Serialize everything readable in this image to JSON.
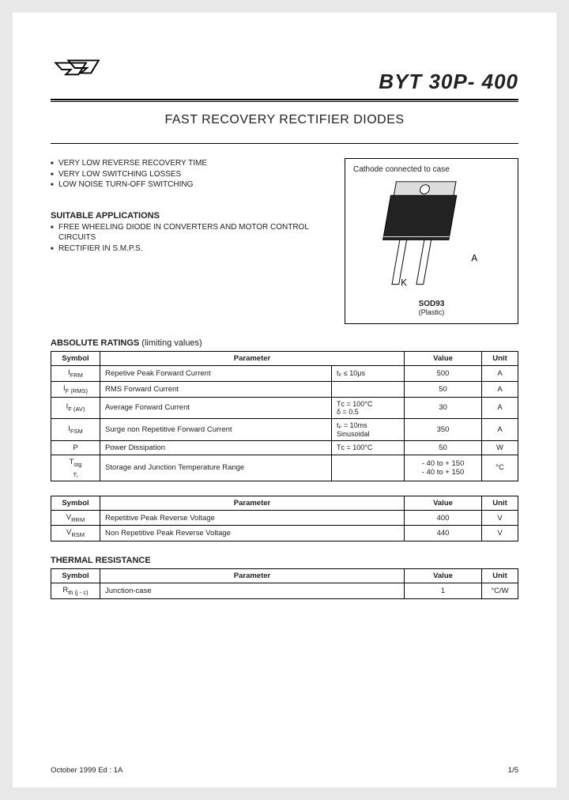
{
  "header": {
    "part_number": "BYT 30P- 400"
  },
  "subtitle": "FAST RECOVERY RECTIFIER DIODES",
  "features": {
    "items": [
      "VERY LOW REVERSE RECOVERY TIME",
      "VERY LOW SWITCHING LOSSES",
      "LOW NOISE TURN-OFF SWITCHING"
    ]
  },
  "applications": {
    "heading": "SUITABLE APPLICATIONS",
    "items": [
      "FREE WHEELING DIODE IN CONVERTERS AND MOTOR CONTROL CIRCUITS",
      "RECTIFIER IN S.M.P.S."
    ]
  },
  "diagram": {
    "caption": "Cathode connected to case",
    "pin_a": "A",
    "pin_k": "K",
    "package_name": "SOD93",
    "package_type": "(Plastic)",
    "colors": {
      "outline": "#000000",
      "body_fill": "#222222",
      "tab_fill": "#dddddd"
    }
  },
  "abs_heading": "ABSOLUTE RATINGS",
  "abs_heading_suffix": " (limiting values)",
  "table_headers": {
    "symbol": "Symbol",
    "parameter": "Parameter",
    "value": "Value",
    "unit": "Unit"
  },
  "abs_rows": [
    {
      "sym": "I",
      "sub": "FRM",
      "param": "Repetive Peak Forward Current",
      "cond": "tₚ ≤ 10μs",
      "value": "500",
      "unit": "A"
    },
    {
      "sym": "I",
      "sub": "F (RMS)",
      "param": "RMS Forward Current",
      "cond": "",
      "value": "50",
      "unit": "A"
    },
    {
      "sym": "I",
      "sub": "F (AV)",
      "param": "Average Forward Current",
      "cond": "Tᴄ = 100°C\nδ = 0.5",
      "value": "30",
      "unit": "A"
    },
    {
      "sym": "I",
      "sub": "FSM",
      "param": "Surge non Repetitive Forward Current",
      "cond": "tₚ = 10ms\nSinusoidal",
      "value": "350",
      "unit": "A"
    },
    {
      "sym": "P",
      "sub": "",
      "param": "Power Dissipation",
      "cond": "Tᴄ = 100°C",
      "value": "50",
      "unit": "W"
    },
    {
      "sym": "T",
      "sub": "stg\nTⱼ",
      "param": "Storage and Junction Temperature Range",
      "cond": "",
      "value": "- 40 to + 150\n- 40 to + 150",
      "unit": "°C"
    }
  ],
  "vr_rows": [
    {
      "sym": "V",
      "sub": "RRM",
      "param": "Repetitive Peak Reverse Voltage",
      "value": "400",
      "unit": "V"
    },
    {
      "sym": "V",
      "sub": "RSM",
      "param": "Non Repetitive Peak Reverse Voltage",
      "value": "440",
      "unit": "V"
    }
  ],
  "thermal_heading": "THERMAL RESISTANCE",
  "thermal_rows": [
    {
      "sym": "R",
      "sub": "th (j - c)",
      "param": "Junction-case",
      "value": "1",
      "unit": "°C/W"
    }
  ],
  "footer": {
    "left": "October 1999  Ed : 1A",
    "right": "1/5"
  }
}
